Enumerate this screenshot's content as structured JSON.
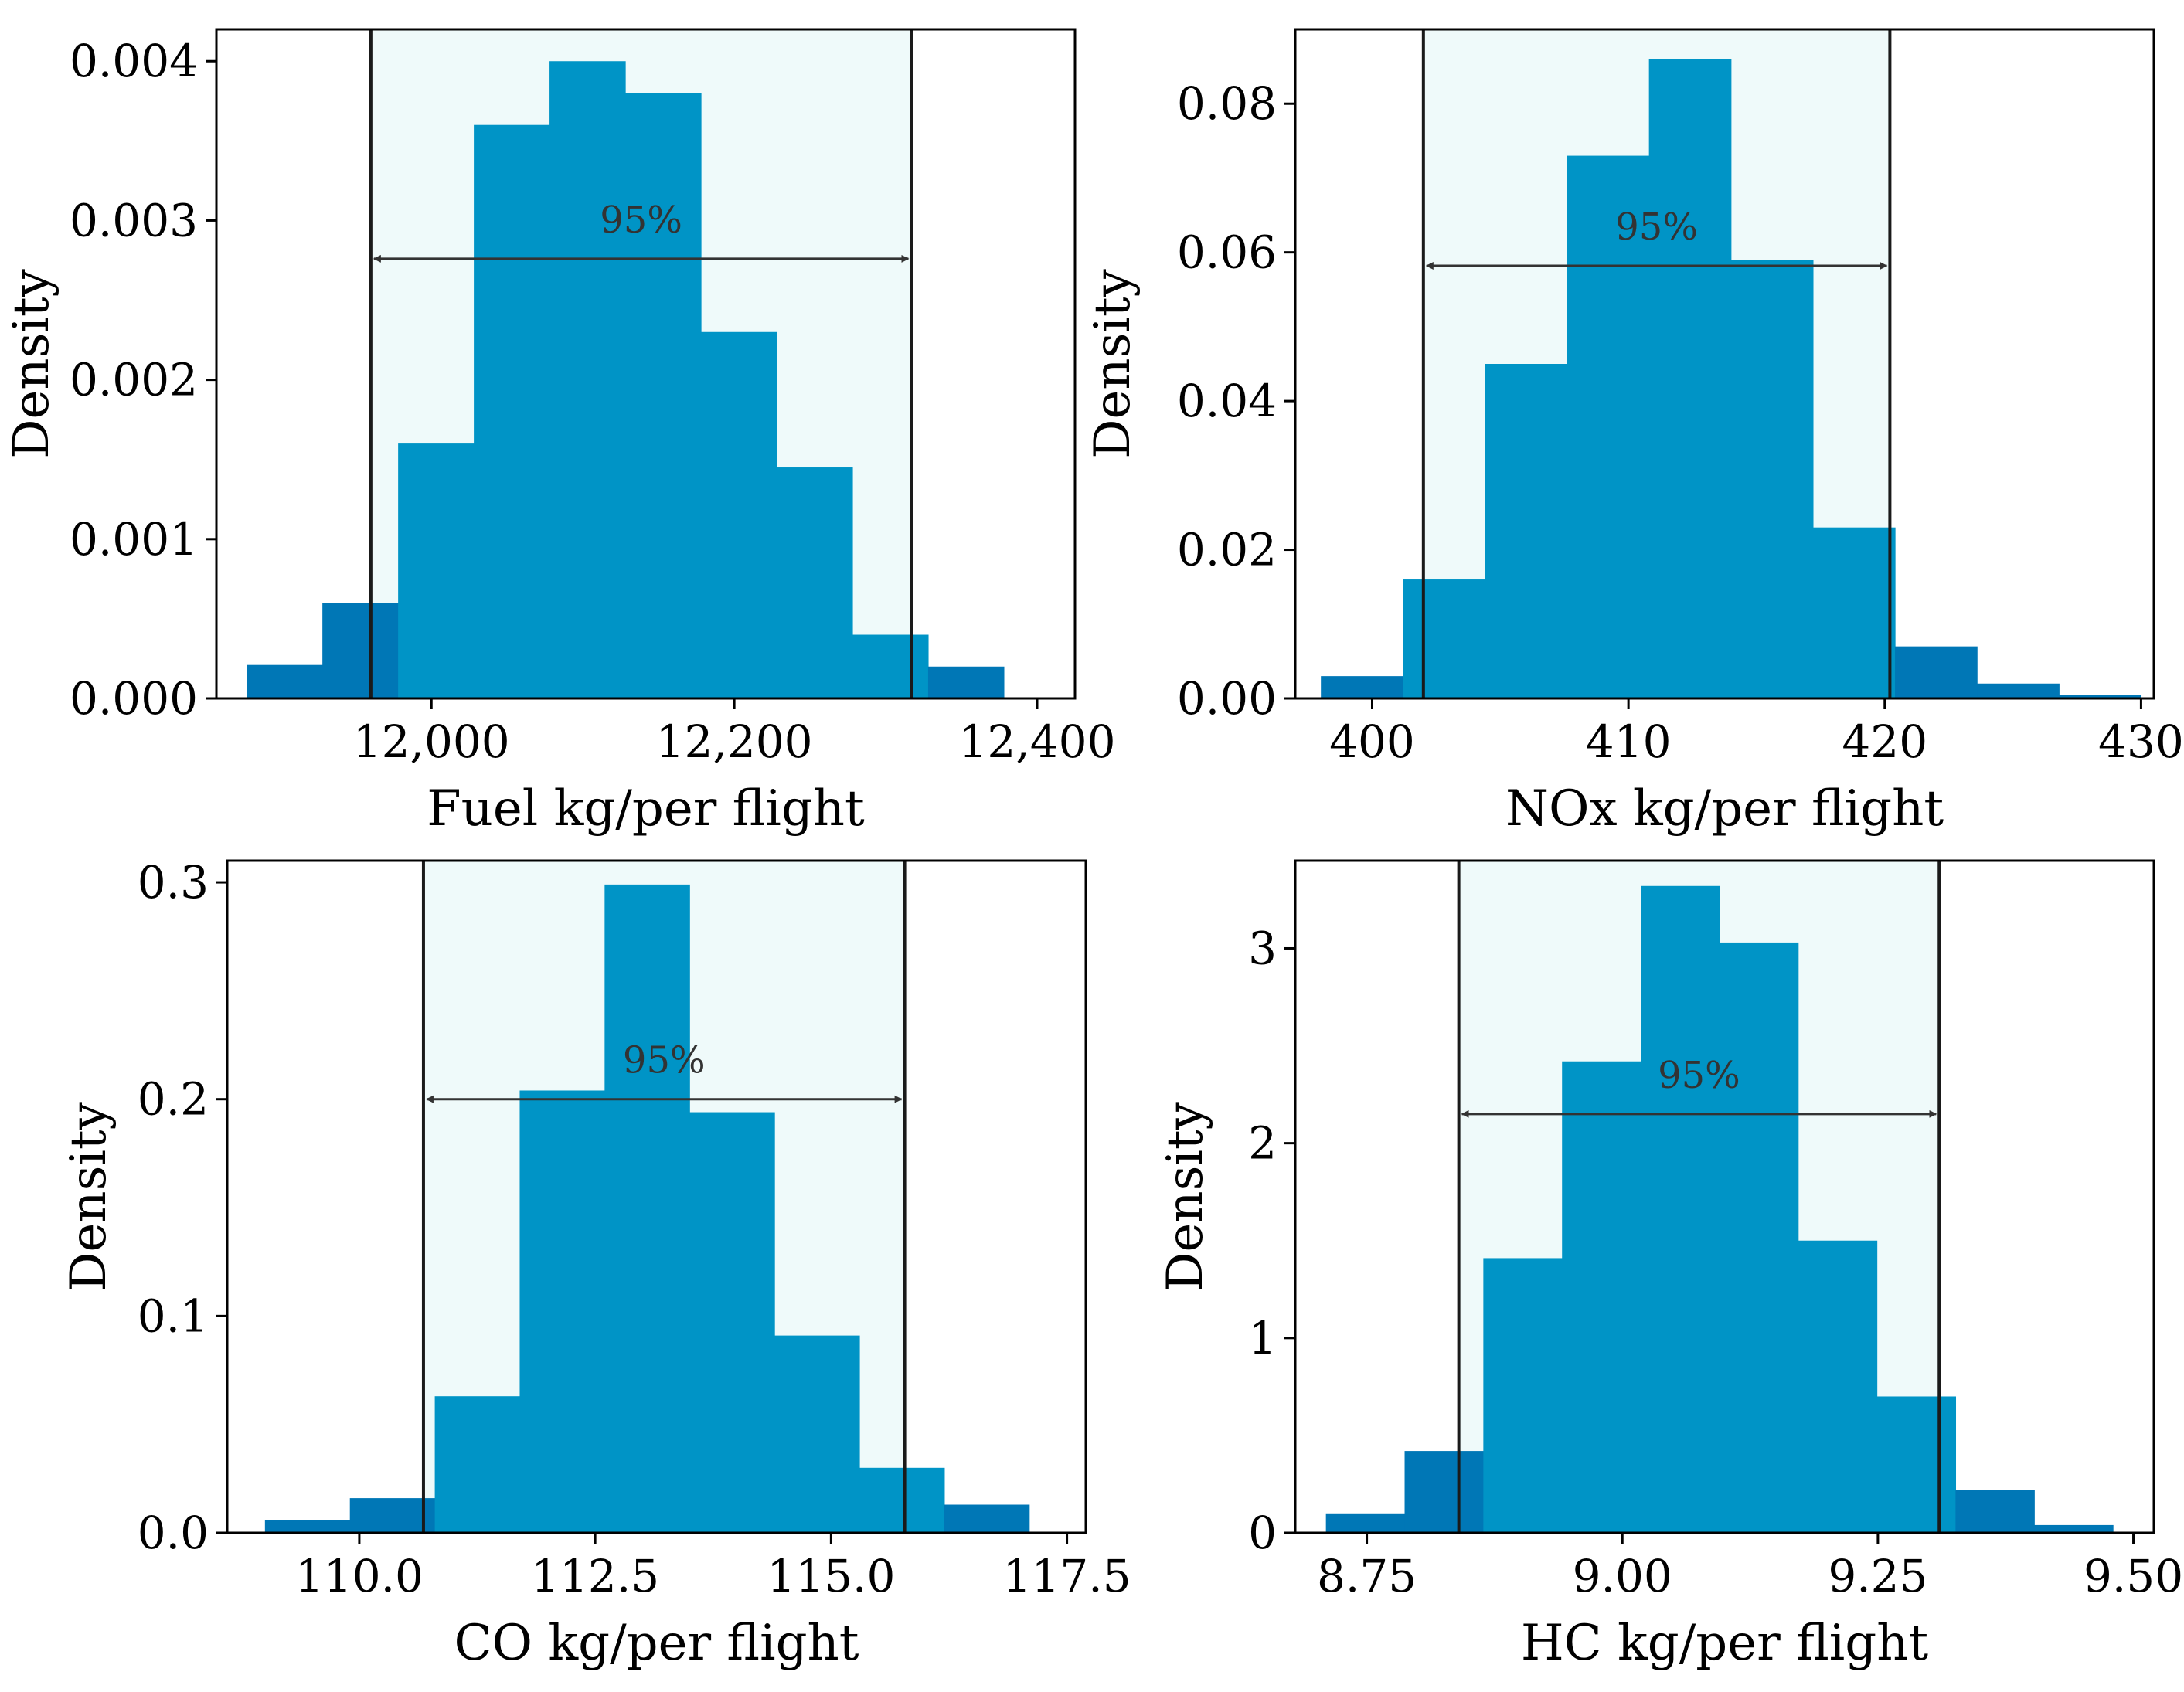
{
  "colors": {
    "bar_inside": "#0094c6",
    "bar_outside": "#0077b6",
    "band": "#effafa",
    "frame": "#000000",
    "interval_line": "#1a1a1a",
    "arrow": "#333333"
  },
  "chart_data": [
    {
      "type": "histogram",
      "xlabel": "Fuel kg/per flight",
      "ylabel": "Density",
      "xlim": [
        11858,
        12425
      ],
      "ylim": [
        0,
        0.0042
      ],
      "xticks": [
        12000,
        12200,
        12400
      ],
      "xtick_labels": [
        "12,000",
        "12,200",
        "12,400"
      ],
      "yticks": [
        0,
        0.001,
        0.002,
        0.003,
        0.004
      ],
      "ytick_labels": [
        "0.000",
        "0.001",
        "0.002",
        "0.003",
        "0.004"
      ],
      "bin_edges": [
        11878,
        11928,
        11978,
        12028,
        12078,
        12128,
        12178,
        12228,
        12278,
        12328,
        12378,
        12428
      ],
      "values": [
        0.00021,
        0.0006,
        0.0016,
        0.0036,
        0.004,
        0.0038,
        0.0023,
        0.00145,
        0.0004,
        0.0002,
        0.0
      ],
      "interval": [
        11960,
        12317
      ],
      "interval_label": "95%",
      "arrow_y": 0.00276
    },
    {
      "type": "histogram",
      "xlabel": "NOx kg/per flight",
      "ylabel": "Density",
      "xlim": [
        397,
        430.5
      ],
      "ylim": [
        0,
        0.09
      ],
      "xticks": [
        400,
        410,
        420,
        430
      ],
      "xtick_labels": [
        "400",
        "410",
        "420",
        "430"
      ],
      "yticks": [
        0,
        0.02,
        0.04,
        0.06,
        0.08
      ],
      "ytick_labels": [
        "0.00",
        "0.02",
        "0.04",
        "0.06",
        "0.08"
      ],
      "bin_edges": [
        398,
        401.2,
        404.4,
        407.6,
        410.8,
        414.0,
        417.2,
        420.4,
        423.6,
        426.8,
        430.0
      ],
      "values": [
        0.003,
        0.016,
        0.045,
        0.073,
        0.086,
        0.059,
        0.023,
        0.007,
        0.002,
        0.0005
      ],
      "interval": [
        402,
        420.2
      ],
      "interval_label": "95%",
      "arrow_y": 0.0582
    },
    {
      "type": "histogram",
      "xlabel": "CO kg/per flight",
      "ylabel": "Density",
      "xlim": [
        108.6,
        117.7
      ],
      "ylim": [
        0,
        0.31
      ],
      "xticks": [
        110.0,
        112.5,
        115.0,
        117.5
      ],
      "xtick_labels": [
        "110.0",
        "112.5",
        "115.0",
        "117.5"
      ],
      "yticks": [
        0,
        0.1,
        0.2,
        0.3
      ],
      "ytick_labels": [
        "0.0",
        "0.1",
        "0.2",
        "0.3"
      ],
      "bin_edges": [
        109.0,
        109.9,
        110.8,
        111.7,
        112.6,
        113.5,
        114.4,
        115.3,
        116.2,
        117.1
      ],
      "values": [
        0.006,
        0.016,
        0.063,
        0.204,
        0.299,
        0.194,
        0.091,
        0.03,
        0.013
      ],
      "interval": [
        110.68,
        115.78
      ],
      "interval_label": "95%",
      "arrow_y": 0.2
    },
    {
      "type": "histogram",
      "xlabel": "HC kg/per flight",
      "ylabel": "Density",
      "xlim": [
        8.68,
        9.52
      ],
      "ylim": [
        0,
        3.45
      ],
      "xticks": [
        8.75,
        9.0,
        9.25,
        9.5
      ],
      "xtick_labels": [
        "8.75",
        "9.00",
        "9.25",
        "9.50"
      ],
      "yticks": [
        0,
        1,
        2,
        3
      ],
      "ytick_labels": [
        "0",
        "1",
        "2",
        "3"
      ],
      "bin_edges": [
        8.71,
        8.787,
        8.864,
        8.941,
        9.018,
        9.095,
        9.172,
        9.249,
        9.326,
        9.403,
        9.48
      ],
      "values": [
        0.1,
        0.42,
        1.41,
        2.42,
        3.32,
        3.03,
        1.5,
        0.7,
        0.22,
        0.04
      ],
      "interval": [
        8.84,
        9.31
      ],
      "interval_label": "95%",
      "arrow_y": 2.15
    }
  ]
}
